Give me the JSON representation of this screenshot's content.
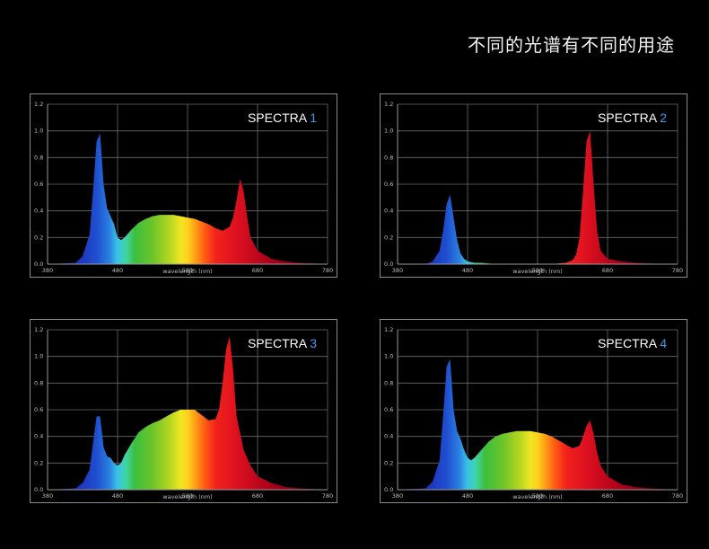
{
  "page": {
    "title": "不同的光谱有不同的用途"
  },
  "chart_data": [
    {
      "type": "area",
      "title_word": "SPECTRA",
      "title_number": "1",
      "xlabel": "wavelength (nm)",
      "xlim": [
        380,
        780
      ],
      "ylim": [
        0,
        1.2
      ],
      "xticks": [
        "380",
        "480",
        "580",
        "680",
        "780"
      ],
      "yticks": [
        "0.0",
        "0.2",
        "0.4",
        "0.6",
        "0.8",
        "1.0",
        "1.2"
      ],
      "x": [
        380,
        420,
        430,
        440,
        445,
        450,
        455,
        460,
        465,
        470,
        475,
        480,
        485,
        490,
        500,
        510,
        520,
        530,
        540,
        550,
        560,
        570,
        580,
        590,
        600,
        610,
        620,
        630,
        640,
        645,
        650,
        655,
        660,
        665,
        670,
        680,
        700,
        720,
        740,
        780
      ],
      "values": [
        0,
        0.01,
        0.06,
        0.22,
        0.55,
        0.92,
        0.98,
        0.6,
        0.42,
        0.36,
        0.3,
        0.2,
        0.18,
        0.2,
        0.26,
        0.31,
        0.34,
        0.36,
        0.37,
        0.37,
        0.37,
        0.36,
        0.35,
        0.34,
        0.32,
        0.3,
        0.27,
        0.25,
        0.28,
        0.35,
        0.48,
        0.64,
        0.55,
        0.36,
        0.2,
        0.1,
        0.04,
        0.02,
        0.01,
        0
      ]
    },
    {
      "type": "area",
      "title_word": "SPECTRA",
      "title_number": "2",
      "xlabel": "wavelength (nm)",
      "xlim": [
        380,
        780
      ],
      "ylim": [
        0,
        1.2
      ],
      "xticks": [
        "380",
        "480",
        "580",
        "680",
        "780"
      ],
      "yticks": [
        "0.0",
        "0.2",
        "0.4",
        "0.6",
        "0.8",
        "1.0",
        "1.2"
      ],
      "x": [
        380,
        420,
        430,
        440,
        445,
        450,
        455,
        460,
        465,
        470,
        475,
        480,
        490,
        500,
        520,
        560,
        600,
        620,
        630,
        635,
        640,
        645,
        650,
        655,
        660,
        665,
        670,
        680,
        700,
        720,
        740,
        780
      ],
      "values": [
        0,
        0.0,
        0.02,
        0.1,
        0.25,
        0.45,
        0.52,
        0.35,
        0.18,
        0.08,
        0.04,
        0.02,
        0.01,
        0.01,
        0.0,
        0.0,
        0.0,
        0.01,
        0.03,
        0.07,
        0.2,
        0.55,
        0.92,
        1.0,
        0.6,
        0.25,
        0.1,
        0.04,
        0.02,
        0.01,
        0.005,
        0
      ]
    },
    {
      "type": "area",
      "title_word": "SPECTRA",
      "title_number": "3",
      "xlabel": "wavelength (nm)",
      "xlim": [
        380,
        780
      ],
      "ylim": [
        0,
        1.2
      ],
      "xticks": [
        "380",
        "480",
        "580",
        "680",
        "780"
      ],
      "yticks": [
        "0.0",
        "0.2",
        "0.4",
        "0.6",
        "0.8",
        "1.0",
        "1.2"
      ],
      "x": [
        380,
        420,
        430,
        440,
        445,
        450,
        455,
        460,
        465,
        470,
        475,
        480,
        485,
        490,
        500,
        510,
        520,
        530,
        540,
        550,
        560,
        570,
        580,
        590,
        600,
        610,
        620,
        625,
        630,
        635,
        640,
        645,
        650,
        660,
        670,
        680,
        700,
        720,
        740,
        780
      ],
      "values": [
        0,
        0.01,
        0.05,
        0.15,
        0.35,
        0.55,
        0.55,
        0.32,
        0.25,
        0.24,
        0.2,
        0.18,
        0.2,
        0.26,
        0.35,
        0.43,
        0.47,
        0.5,
        0.52,
        0.55,
        0.58,
        0.6,
        0.6,
        0.6,
        0.56,
        0.52,
        0.53,
        0.6,
        0.8,
        1.05,
        1.15,
        0.9,
        0.55,
        0.3,
        0.18,
        0.1,
        0.05,
        0.02,
        0.01,
        0
      ]
    },
    {
      "type": "area",
      "title_word": "SPECTRA",
      "title_number": "4",
      "xlabel": "wavelength (nm)",
      "xlim": [
        380,
        780
      ],
      "ylim": [
        0,
        1.2
      ],
      "xticks": [
        "380",
        "480",
        "580",
        "680",
        "780"
      ],
      "yticks": [
        "0.0",
        "0.2",
        "0.4",
        "0.6",
        "0.8",
        "1.0",
        "1.2"
      ],
      "x": [
        380,
        420,
        430,
        440,
        445,
        450,
        455,
        460,
        465,
        470,
        475,
        480,
        485,
        490,
        500,
        510,
        520,
        530,
        540,
        550,
        560,
        570,
        580,
        590,
        600,
        610,
        620,
        630,
        640,
        645,
        650,
        655,
        660,
        665,
        670,
        680,
        700,
        720,
        740,
        780
      ],
      "values": [
        0,
        0.01,
        0.06,
        0.22,
        0.55,
        0.92,
        0.98,
        0.6,
        0.44,
        0.38,
        0.3,
        0.24,
        0.22,
        0.24,
        0.3,
        0.36,
        0.4,
        0.42,
        0.43,
        0.44,
        0.44,
        0.44,
        0.43,
        0.42,
        0.4,
        0.37,
        0.34,
        0.31,
        0.33,
        0.4,
        0.48,
        0.52,
        0.42,
        0.28,
        0.18,
        0.1,
        0.04,
        0.02,
        0.01,
        0
      ]
    }
  ]
}
